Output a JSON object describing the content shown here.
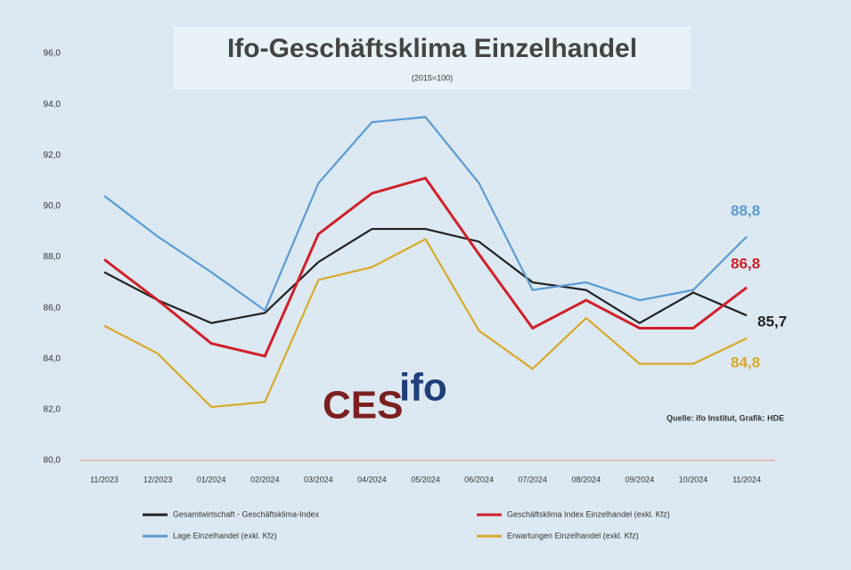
{
  "chart_data": {
    "type": "line",
    "title": "Ifo-Geschäftsklima Einzelhandel",
    "subtitle": "(2015=100)",
    "logo": {
      "left": "CES",
      "right": "ifo"
    },
    "source": "Quelle: ifo Institut, Grafik: HDE",
    "categories": [
      "11/2023",
      "12/2023",
      "01/2024",
      "02/2024",
      "03/2024",
      "04/2024",
      "05/2024",
      "06/2024",
      "07/2024",
      "08/2024",
      "09/2024",
      "10/2024",
      "11/2024"
    ],
    "series": [
      {
        "name": "Gesamtwirtschaft - Geschäftsklima-Index",
        "color": "#222222",
        "values": [
          87.4,
          86.3,
          85.4,
          85.8,
          87.8,
          89.1,
          89.1,
          88.6,
          87.0,
          86.7,
          85.4,
          86.6,
          85.7
        ],
        "value_labels": [
          null,
          null,
          null,
          null,
          null,
          null,
          null,
          null,
          null,
          null,
          null,
          null,
          "85,7"
        ]
      },
      {
        "name": "Geschäftsklima Index Einzelhandel (exkl. Kfz)",
        "color": "#d0202a",
        "values": [
          87.9,
          86.3,
          84.6,
          84.1,
          88.9,
          90.5,
          91.1,
          88.1,
          85.2,
          86.3,
          85.2,
          85.2,
          86.8
        ],
        "value_labels": [
          null,
          null,
          null,
          null,
          null,
          null,
          null,
          null,
          null,
          null,
          null,
          null,
          "86,8"
        ]
      },
      {
        "name": "Lage Einzelhandel (exkl. Kfz)",
        "color": "#5b9bd5",
        "values": [
          90.4,
          88.8,
          87.4,
          85.9,
          90.9,
          93.3,
          93.5,
          90.9,
          86.7,
          87.0,
          86.3,
          86.7,
          88.8
        ],
        "value_labels": [
          null,
          null,
          null,
          null,
          null,
          null,
          null,
          null,
          null,
          null,
          null,
          null,
          "88,8"
        ]
      },
      {
        "name": "Erwartungen Einzelhandel (exkl. Kfz)",
        "color": "#d9a92a",
        "values": [
          85.3,
          84.2,
          82.1,
          82.3,
          87.1,
          87.6,
          88.7,
          85.1,
          83.6,
          85.6,
          83.8,
          83.8,
          84.8
        ],
        "value_labels": [
          null,
          null,
          null,
          null,
          null,
          null,
          null,
          null,
          null,
          null,
          null,
          null,
          "84,8"
        ]
      }
    ],
    "ylim": [
      80,
      96
    ],
    "yticks": [
      {
        "value": 80,
        "label": "80,0"
      },
      {
        "value": 82,
        "label": "82,0"
      },
      {
        "value": 84,
        "label": "84,0"
      },
      {
        "value": 86,
        "label": "86,0"
      },
      {
        "value": 88,
        "label": "88,0"
      },
      {
        "value": 90,
        "label": "90,0"
      },
      {
        "value": 92,
        "label": "92,0"
      },
      {
        "value": 94,
        "label": "94,0"
      },
      {
        "value": 96,
        "label": "96,0"
      }
    ]
  }
}
